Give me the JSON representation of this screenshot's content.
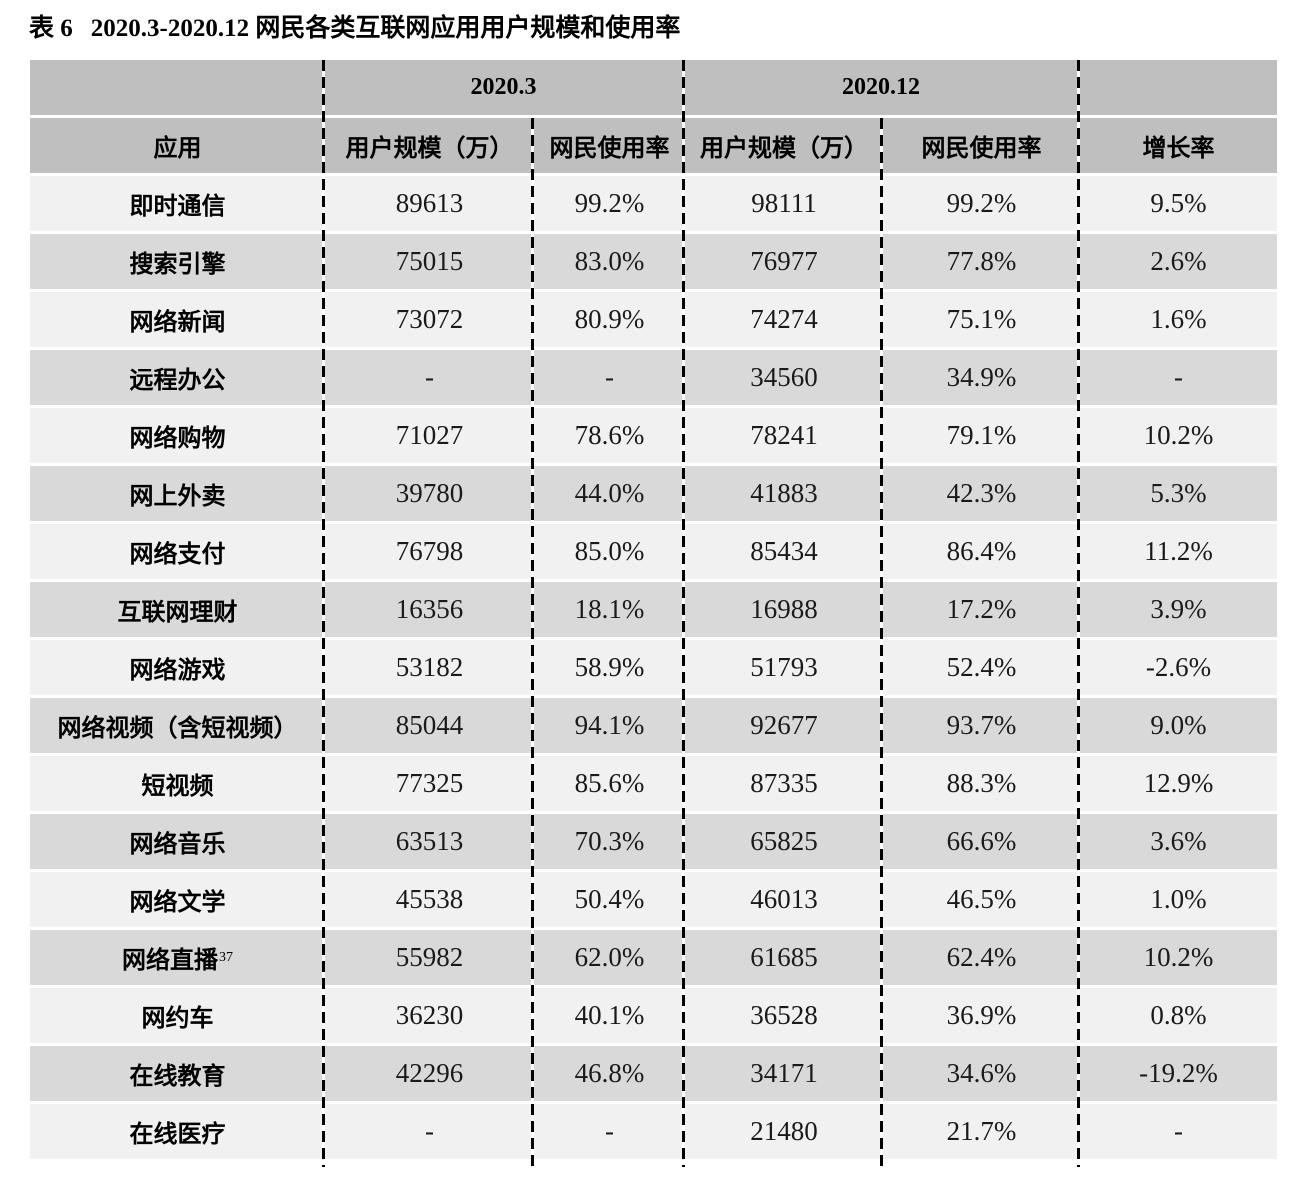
{
  "title": {
    "prefix": "表 6",
    "text": "2020.3-2020.12 网民各类互联网应用用户规模和使用率"
  },
  "table": {
    "group_headers": {
      "period_1": "2020.3",
      "period_2": "2020.12"
    },
    "columns": {
      "app": "应用",
      "scale_1": "用户规模（万）",
      "usage_1": "网民使用率",
      "scale_2": "用户规模（万）",
      "usage_2": "网民使用率",
      "growth": "增长率"
    },
    "rows": [
      {
        "app": "即时通信",
        "scale_1": "89613",
        "usage_1": "99.2%",
        "scale_2": "98111",
        "usage_2": "99.2%",
        "growth": "9.5%"
      },
      {
        "app": "搜索引擎",
        "scale_1": "75015",
        "usage_1": "83.0%",
        "scale_2": "76977",
        "usage_2": "77.8%",
        "growth": "2.6%"
      },
      {
        "app": "网络新闻",
        "scale_1": "73072",
        "usage_1": "80.9%",
        "scale_2": "74274",
        "usage_2": "75.1%",
        "growth": "1.6%"
      },
      {
        "app": "远程办公",
        "scale_1": "-",
        "usage_1": "-",
        "scale_2": "34560",
        "usage_2": "34.9%",
        "growth": "-"
      },
      {
        "app": "网络购物",
        "scale_1": "71027",
        "usage_1": "78.6%",
        "scale_2": "78241",
        "usage_2": "79.1%",
        "growth": "10.2%"
      },
      {
        "app": "网上外卖",
        "scale_1": "39780",
        "usage_1": "44.0%",
        "scale_2": "41883",
        "usage_2": "42.3%",
        "growth": "5.3%"
      },
      {
        "app": "网络支付",
        "scale_1": "76798",
        "usage_1": "85.0%",
        "scale_2": "85434",
        "usage_2": "86.4%",
        "growth": "11.2%"
      },
      {
        "app": "互联网理财",
        "scale_1": "16356",
        "usage_1": "18.1%",
        "scale_2": "16988",
        "usage_2": "17.2%",
        "growth": "3.9%"
      },
      {
        "app": "网络游戏",
        "scale_1": "53182",
        "usage_1": "58.9%",
        "scale_2": "51793",
        "usage_2": "52.4%",
        "growth": "-2.6%"
      },
      {
        "app": "网络视频（含短视频）",
        "scale_1": "85044",
        "usage_1": "94.1%",
        "scale_2": "92677",
        "usage_2": "93.7%",
        "growth": "9.0%"
      },
      {
        "app": "短视频",
        "scale_1": "77325",
        "usage_1": "85.6%",
        "scale_2": "87335",
        "usage_2": "88.3%",
        "growth": "12.9%"
      },
      {
        "app": "网络音乐",
        "scale_1": "63513",
        "usage_1": "70.3%",
        "scale_2": "65825",
        "usage_2": "66.6%",
        "growth": "3.6%"
      },
      {
        "app": "网络文学",
        "scale_1": "45538",
        "usage_1": "50.4%",
        "scale_2": "46013",
        "usage_2": "46.5%",
        "growth": "1.0%"
      },
      {
        "app": "网络直播",
        "app_sup": "37",
        "scale_1": "55982",
        "usage_1": "62.0%",
        "scale_2": "61685",
        "usage_2": "62.4%",
        "growth": "10.2%"
      },
      {
        "app": "网约车",
        "scale_1": "36230",
        "usage_1": "40.1%",
        "scale_2": "36528",
        "usage_2": "36.9%",
        "growth": "0.8%"
      },
      {
        "app": "在线教育",
        "scale_1": "42296",
        "usage_1": "46.8%",
        "scale_2": "34171",
        "usage_2": "34.6%",
        "growth": "-19.2%"
      },
      {
        "app": "在线医疗",
        "scale_1": "-",
        "usage_1": "-",
        "scale_2": "21480",
        "usage_2": "21.7%",
        "growth": "-"
      }
    ],
    "colors": {
      "header_bg": "#bfbfbf",
      "row_light": "#f1f1f1",
      "row_dark": "#d9d9d9",
      "separator_dash": "#000000",
      "separator_gap": "#ffffff"
    }
  }
}
